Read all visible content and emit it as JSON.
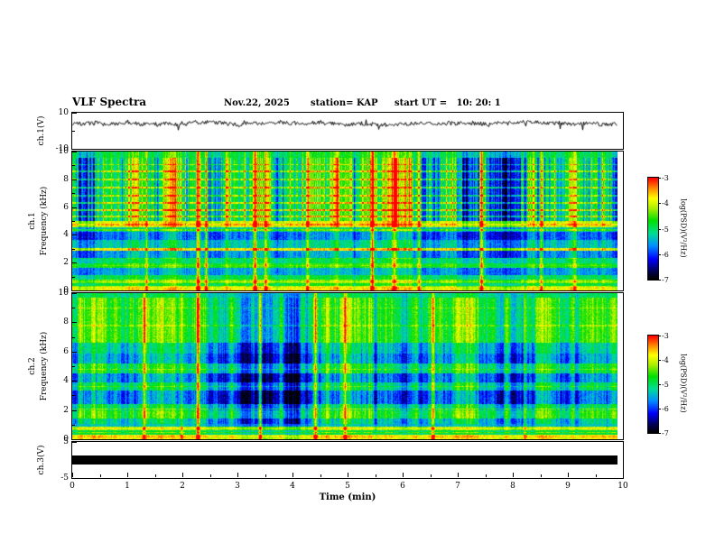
{
  "header": {
    "title": "VLF Spectra",
    "date": "Nov.22, 2025",
    "station": "station= KAP",
    "start_ut": "start UT =   10: 20: 1"
  },
  "chart_data": {
    "type": "heatmap",
    "title": "VLF Spectra",
    "x_axis": {
      "label": "Time (min)",
      "min": 0,
      "max": 10,
      "ticks": [
        0,
        1,
        2,
        3,
        4,
        5,
        6,
        7,
        8,
        9,
        10
      ]
    },
    "panels": [
      {
        "id": "ch1v",
        "kind": "line",
        "ylabel": "ch.1(V)",
        "ymin": -10,
        "ymax": 10,
        "yticks": [
          10,
          -10
        ],
        "line": {
          "seed": 7,
          "mean": 4.3,
          "wander": 0.5,
          "pull": 0.04,
          "jitter": 1.1,
          "spike_prob": 0.03,
          "spike_size": 3.5
        }
      },
      {
        "id": "ch1f",
        "kind": "spectrogram",
        "ylabel": [
          "ch.1",
          "Frequency (kHz)"
        ],
        "ymin": 0,
        "ymax": 10,
        "yticks": [
          0,
          2,
          4,
          6,
          8,
          10
        ],
        "spec": {
          "seed": 42,
          "noise": 0.5,
          "col_noise": 0.85,
          "smooth_noise": 0.45,
          "slow_noise": 0.4,
          "bands": [
            {
              "f0": 9.6,
              "f1": 10.01,
              "v": -5.0
            },
            {
              "f0": 5.0,
              "f1": 9.6,
              "v": -5.15
            },
            {
              "f0": 4.55,
              "f1": 5.0,
              "v": -4.0
            },
            {
              "f0": 4.2,
              "f1": 4.55,
              "v": -5.3
            },
            {
              "f0": 3.6,
              "f1": 4.2,
              "v": -5.9
            },
            {
              "f0": 3.05,
              "f1": 3.6,
              "v": -5.4
            },
            {
              "f0": 2.85,
              "f1": 3.05,
              "v": -3.9
            },
            {
              "f0": 2.25,
              "f1": 2.85,
              "v": -5.7
            },
            {
              "f0": 1.95,
              "f1": 2.25,
              "v": -5.1
            },
            {
              "f0": 1.6,
              "f1": 1.95,
              "v": -4.7
            },
            {
              "f0": 1.05,
              "f1": 1.6,
              "v": -5.6
            },
            {
              "f0": 0.75,
              "f1": 1.05,
              "v": -5.0
            },
            {
              "f0": 0.5,
              "f1": 0.75,
              "v": -4.4
            },
            {
              "f0": 0.3,
              "f1": 0.5,
              "v": -4.9
            },
            {
              "f0": 0.15,
              "f1": 0.3,
              "v": -4.2
            },
            {
              "f0": 0.0,
              "f1": 0.15,
              "v": -3.9
            }
          ],
          "hlines": [
            {
              "f": 9.1,
              "w": 0.1,
              "v": -4.5
            },
            {
              "f": 8.6,
              "w": 0.12,
              "v": -4.25
            },
            {
              "f": 8.0,
              "w": 0.12,
              "v": -4.35
            },
            {
              "f": 7.4,
              "w": 0.12,
              "v": -4.25
            },
            {
              "f": 6.85,
              "w": 0.12,
              "v": -4.4
            },
            {
              "f": 6.3,
              "w": 0.12,
              "v": -4.2
            },
            {
              "f": 5.8,
              "w": 0.15,
              "v": -4.0
            },
            {
              "f": 5.35,
              "w": 0.12,
              "v": -4.3
            },
            {
              "f": 4.75,
              "w": 0.1,
              "v": -3.6
            },
            {
              "f": 4.35,
              "w": 0.08,
              "v": -4.6
            },
            {
              "f": 2.95,
              "w": 0.1,
              "v": -3.8
            },
            {
              "f": 2.3,
              "w": 0.08,
              "v": -4.8
            },
            {
              "f": 1.75,
              "w": 0.08,
              "v": -4.5
            },
            {
              "f": 0.6,
              "w": 0.08,
              "v": -4.1
            },
            {
              "f": 0.22,
              "w": 0.07,
              "v": -3.9
            }
          ],
          "streak_gain": [
            {
              "f0": 9.6,
              "f1": 10.01,
              "g": 0.7
            },
            {
              "f0": 5.0,
              "f1": 9.6,
              "g": 1.5
            },
            {
              "f0": 2.3,
              "f1": 5.0,
              "g": 0.6
            },
            {
              "f0": 0.0,
              "f1": 2.3,
              "g": 0.4
            }
          ],
          "red_streaks": [
            {
              "x": 1.35,
              "v": 1.4
            },
            {
              "x": 2.3,
              "v": 2.3
            },
            {
              "x": 2.45,
              "v": 1.8
            },
            {
              "x": 3.35,
              "v": 2.0
            },
            {
              "x": 3.55,
              "v": 1.6
            },
            {
              "x": 4.3,
              "v": 1.2
            },
            {
              "x": 5.5,
              "v": 2.2
            },
            {
              "x": 5.9,
              "v": 1.4
            },
            {
              "x": 6.35,
              "v": 1.3
            },
            {
              "x": 7.5,
              "v": 1.9
            },
            {
              "x": 8.6,
              "v": 1.2
            },
            {
              "x": 9.2,
              "v": 1.1
            }
          ]
        }
      },
      {
        "id": "ch2f",
        "kind": "spectrogram",
        "ylabel": [
          "ch.2",
          "Frequency (kHz)"
        ],
        "ymin": 0,
        "ymax": 10,
        "yticks": [
          0,
          2,
          4,
          6,
          8,
          10
        ],
        "spec": {
          "seed": 1234,
          "noise": 0.5,
          "col_noise": 0.5,
          "smooth_noise": 0.55,
          "slow_noise": 0.3,
          "bands": [
            {
              "f0": 9.7,
              "f1": 10.01,
              "v": -5.2
            },
            {
              "f0": 6.6,
              "f1": 9.7,
              "v": -4.85
            },
            {
              "f0": 5.9,
              "f1": 6.6,
              "v": -5.5
            },
            {
              "f0": 5.2,
              "f1": 5.9,
              "v": -5.8
            },
            {
              "f0": 4.5,
              "f1": 5.2,
              "v": -5.1
            },
            {
              "f0": 3.9,
              "f1": 4.5,
              "v": -5.9
            },
            {
              "f0": 3.35,
              "f1": 3.9,
              "v": -5.3
            },
            {
              "f0": 2.4,
              "f1": 3.35,
              "v": -6.0
            },
            {
              "f0": 1.95,
              "f1": 2.4,
              "v": -5.3
            },
            {
              "f0": 1.4,
              "f1": 1.95,
              "v": -4.9
            },
            {
              "f0": 0.85,
              "f1": 1.4,
              "v": -5.5
            },
            {
              "f0": 0.62,
              "f1": 0.85,
              "v": -4.3
            },
            {
              "f0": 0.3,
              "f1": 0.62,
              "v": -5.0
            },
            {
              "f0": 0.0,
              "f1": 0.3,
              "v": -3.9
            }
          ],
          "hlines": [
            {
              "f": 9.0,
              "w": 0.08,
              "v": -4.5
            },
            {
              "f": 7.8,
              "w": 0.08,
              "v": -4.5
            },
            {
              "f": 4.8,
              "w": 0.08,
              "v": -4.7
            },
            {
              "f": 3.6,
              "w": 0.08,
              "v": -4.9
            },
            {
              "f": 2.05,
              "w": 0.07,
              "v": -4.6
            },
            {
              "f": 0.72,
              "w": 0.08,
              "v": -4.0
            },
            {
              "f": 0.45,
              "w": 0.06,
              "v": -4.5
            },
            {
              "f": 0.15,
              "w": 0.08,
              "v": -3.7
            }
          ],
          "streak_gain": [
            {
              "f0": 9.7,
              "f1": 10.01,
              "g": 0.5
            },
            {
              "f0": 1.0,
              "f1": 9.7,
              "g": 1.0
            },
            {
              "f0": 0.0,
              "f1": 1.0,
              "g": 0.4
            }
          ],
          "red_streaks": [
            {
              "x": 1.3,
              "v": 1.0
            },
            {
              "x": 2.0,
              "v": 1.2
            },
            {
              "x": 2.3,
              "v": 1.9
            },
            {
              "x": 3.45,
              "v": 2.0
            },
            {
              "x": 4.45,
              "v": 1.7
            },
            {
              "x": 5.0,
              "v": 1.3
            },
            {
              "x": 6.6,
              "v": 1.1
            },
            {
              "x": 8.3,
              "v": 0.9
            }
          ]
        }
      },
      {
        "id": "ch3v",
        "kind": "bar",
        "ylabel": "ch.3(V)",
        "ymin": -5,
        "ymax": 5,
        "yticks": [
          5,
          -5
        ],
        "bar": {
          "center": 0,
          "half_height": 1.2
        }
      }
    ],
    "colorbars": [
      {
        "label": "log(PSD)(V²/Hz)",
        "ticks": [
          -3,
          -4,
          -5,
          -6,
          -7
        ],
        "vmin": -7,
        "vmax": -3
      },
      {
        "label": "log(PSD)(V²/Hz)",
        "ticks": [
          -3,
          -4,
          -5,
          -6,
          -7
        ],
        "vmin": -7,
        "vmax": -3
      }
    ],
    "colormap_stops": [
      {
        "t": 0.0,
        "c": "#000000"
      },
      {
        "t": 0.08,
        "c": "#000055"
      },
      {
        "t": 0.2,
        "c": "#0000ff"
      },
      {
        "t": 0.33,
        "c": "#0090ff"
      },
      {
        "t": 0.45,
        "c": "#00dd99"
      },
      {
        "t": 0.58,
        "c": "#00e000"
      },
      {
        "t": 0.7,
        "c": "#aaee00"
      },
      {
        "t": 0.8,
        "c": "#ffff00"
      },
      {
        "t": 0.9,
        "c": "#ff8800"
      },
      {
        "t": 1.0,
        "c": "#ff0000"
      }
    ]
  }
}
